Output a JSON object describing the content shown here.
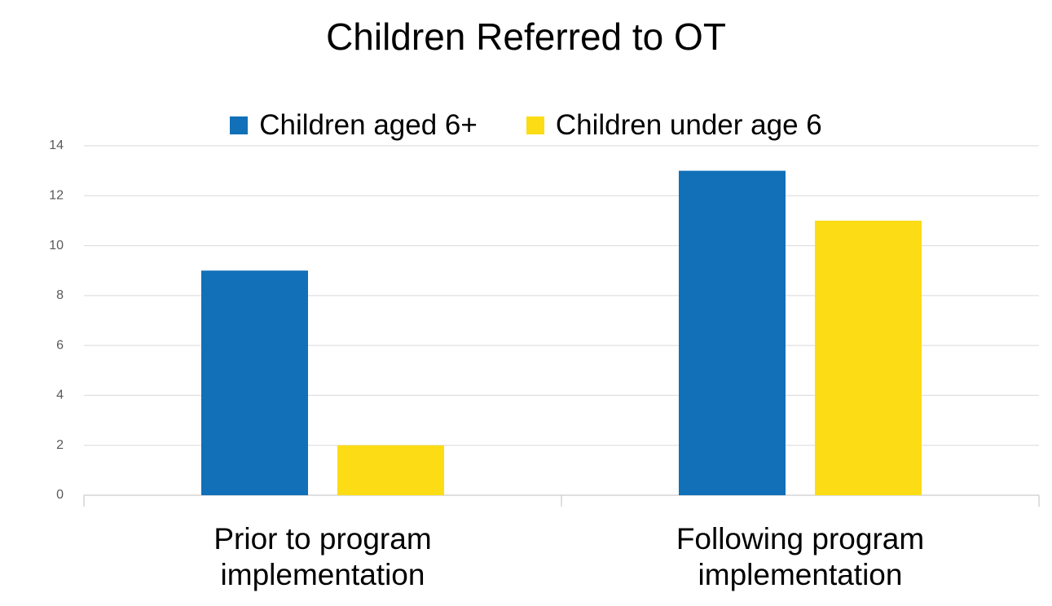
{
  "chart_data": {
    "type": "bar",
    "title": "Children Referred to OT",
    "categories": [
      "Prior to program implementation",
      "Following program implementation"
    ],
    "series": [
      {
        "name": "Children aged 6+",
        "color": "#1170b8",
        "values": [
          9,
          13
        ]
      },
      {
        "name": "Children under age 6",
        "color": "#fcdc14",
        "values": [
          2,
          11
        ]
      }
    ],
    "ylim": [
      0,
      14
    ],
    "yticks": [
      0,
      2,
      4,
      6,
      8,
      10,
      12,
      14
    ],
    "grid": true,
    "legend": "top"
  }
}
